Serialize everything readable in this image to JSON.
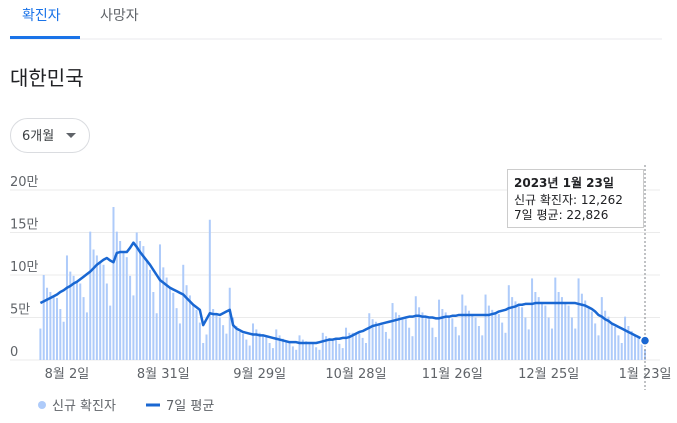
{
  "tabs": [
    "확진자",
    "사망자"
  ],
  "region": "대한민국",
  "range": "6개월",
  "chart_data": {
    "type": "bar-line",
    "categories": [
      null,
      null,
      null,
      null,
      null,
      null,
      null,
      null,
      "8월 2일",
      null,
      null,
      null,
      null,
      null,
      null,
      null,
      null,
      null,
      null,
      null,
      null,
      null,
      null,
      null,
      null,
      null,
      null,
      null,
      null,
      null,
      null,
      null,
      null,
      null,
      null,
      null,
      null,
      "8월 31일",
      null,
      null,
      null,
      null,
      null,
      null,
      null,
      null,
      null,
      null,
      null,
      null,
      null,
      null,
      null,
      null,
      null,
      null,
      null,
      null,
      null,
      null,
      null,
      null,
      null,
      null,
      null,
      null,
      "9월 29일",
      null,
      null,
      null,
      null,
      null,
      null,
      null,
      null,
      null,
      null,
      null,
      null,
      null,
      null,
      null,
      null,
      null,
      null,
      null,
      null,
      null,
      null,
      null,
      null,
      null,
      null,
      null,
      null,
      "10월 28일",
      null,
      null,
      null,
      null,
      null,
      null,
      null,
      null,
      null,
      null,
      null,
      null,
      null,
      null,
      null,
      null,
      null,
      null,
      null,
      null,
      null,
      null,
      null,
      null,
      null,
      null,
      null,
      null,
      "11월 26일",
      null,
      null,
      null,
      null,
      null,
      null,
      null,
      null,
      null,
      null,
      null,
      null,
      null,
      null,
      null,
      null,
      null,
      null,
      null,
      null,
      null,
      null,
      null,
      null,
      null,
      null,
      null,
      null,
      "12월 25일",
      null,
      null,
      null,
      null,
      null,
      null,
      null,
      null,
      null,
      null,
      null,
      null,
      null,
      null,
      null,
      null,
      null,
      null,
      null,
      null,
      null,
      null,
      null,
      null,
      null,
      null,
      null,
      null,
      "1월 23일"
    ],
    "series": [
      {
        "name": "신규 확진자",
        "color": "#aecbfa",
        "values": [
          37000,
          100000,
          85000,
          80000,
          75000,
          73000,
          60000,
          45000,
          123000,
          104000,
          99000,
          92000,
          90000,
          74000,
          56000,
          151000,
          130000,
          123000,
          115000,
          112000,
          90000,
          64000,
          180000,
          151000,
          140000,
          127000,
          121000,
          99000,
          76000,
          150000,
          140000,
          134000,
          117000,
          106000,
          80000,
          55000,
          136000,
          109000,
          97000,
          85000,
          79000,
          61000,
          43000,
          112000,
          88000,
          76000,
          65000,
          59000,
          44000,
          20000,
          30000,
          165000,
          60000,
          54000,
          50000,
          41000,
          31000,
          85000,
          50000,
          40000,
          33000,
          31000,
          24000,
          17000,
          43000,
          36000,
          32000,
          29000,
          27000,
          20000,
          14000,
          36000,
          29000,
          25000,
          22000,
          20000,
          16000,
          12000,
          29000,
          24000,
          22000,
          20000,
          19000,
          15000,
          12000,
          32000,
          28000,
          26000,
          24000,
          24000,
          19000,
          14000,
          38000,
          32000,
          32000,
          31000,
          31000,
          26000,
          20000,
          55000,
          48000,
          45000,
          42000,
          41000,
          33000,
          25000,
          67000,
          56000,
          53000,
          49000,
          48000,
          38000,
          28000,
          75000,
          62000,
          56000,
          51000,
          48000,
          38000,
          27000,
          71000,
          60000,
          56000,
          51000,
          49000,
          39000,
          29000,
          77000,
          64000,
          58000,
          53000,
          50000,
          40000,
          29000,
          77000,
          64000,
          59000,
          55000,
          54000,
          44000,
          32000,
          88000,
          74000,
          69000,
          65000,
          62000,
          50000,
          36000,
          96000,
          80000,
          74000,
          67000,
          64000,
          50000,
          37000,
          97000,
          80000,
          74000,
          67000,
          64000,
          50000,
          37000,
          96000,
          78000,
          70000,
          62000,
          57000,
          43000,
          29000,
          74000,
          58000,
          51000,
          43000,
          39000,
          29000,
          20000,
          51000,
          40000,
          34000,
          29000,
          26000,
          19000,
          12262
        ]
      },
      {
        "name": "7일 평균",
        "color": "#1967d2",
        "values": [
          67000,
          69000,
          71000,
          73000,
          75000,
          77000,
          80000,
          82000,
          85000,
          87000,
          90000,
          92000,
          95000,
          98000,
          101000,
          104000,
          108000,
          112000,
          115000,
          118000,
          120000,
          117000,
          115000,
          126000,
          127000,
          127000,
          127000,
          132000,
          138000,
          133000,
          127000,
          122000,
          117000,
          112000,
          106000,
          100000,
          94000,
          91000,
          88000,
          85000,
          83000,
          81000,
          79000,
          77000,
          73000,
          69000,
          65000,
          62000,
          59000,
          41000,
          48000,
          55000,
          54000,
          54000,
          53000,
          55000,
          57000,
          59000,
          41000,
          37000,
          35000,
          33000,
          32000,
          31000,
          30000,
          30000,
          29000,
          29000,
          28000,
          27000,
          26000,
          25000,
          24000,
          23000,
          22000,
          21000,
          21000,
          21000,
          20000,
          20000,
          20000,
          20000,
          20000,
          20000,
          21000,
          22000,
          23000,
          24000,
          24000,
          25000,
          25000,
          26000,
          26000,
          27000,
          29000,
          31000,
          33000,
          34000,
          36000,
          38000,
          40000,
          41000,
          42000,
          43000,
          44000,
          45000,
          46000,
          47000,
          48000,
          49000,
          50000,
          51000,
          51000,
          52000,
          52000,
          51000,
          51000,
          50000,
          50000,
          49000,
          49000,
          50000,
          51000,
          51000,
          52000,
          52000,
          53000,
          53000,
          53000,
          53000,
          53000,
          53000,
          53000,
          53000,
          53000,
          53000,
          54000,
          55000,
          57000,
          58000,
          59000,
          61000,
          62000,
          63000,
          65000,
          65000,
          66000,
          66000,
          66000,
          67000,
          67000,
          67000,
          67000,
          67000,
          67000,
          67000,
          67000,
          67000,
          67000,
          67000,
          67000,
          67000,
          66000,
          65000,
          64000,
          62000,
          60000,
          57000,
          53000,
          51000,
          48000,
          46000,
          43000,
          41000,
          39000,
          37000,
          35000,
          33000,
          31000,
          29000,
          27000,
          25000,
          22826
        ]
      }
    ],
    "ylim": [
      0,
      200000
    ],
    "yticks": [
      0,
      {
        "value": 50000,
        "label": "5만"
      },
      {
        "value": 100000,
        "label": "10만"
      },
      {
        "value": 150000,
        "label": "15만"
      },
      {
        "value": 200000,
        "label": "20만"
      }
    ],
    "grid": true,
    "tooltip": {
      "date": "2023년 1월 23일",
      "lines": [
        "신규 확진자: 12,262",
        "7일 평균: 22,826"
      ]
    }
  }
}
